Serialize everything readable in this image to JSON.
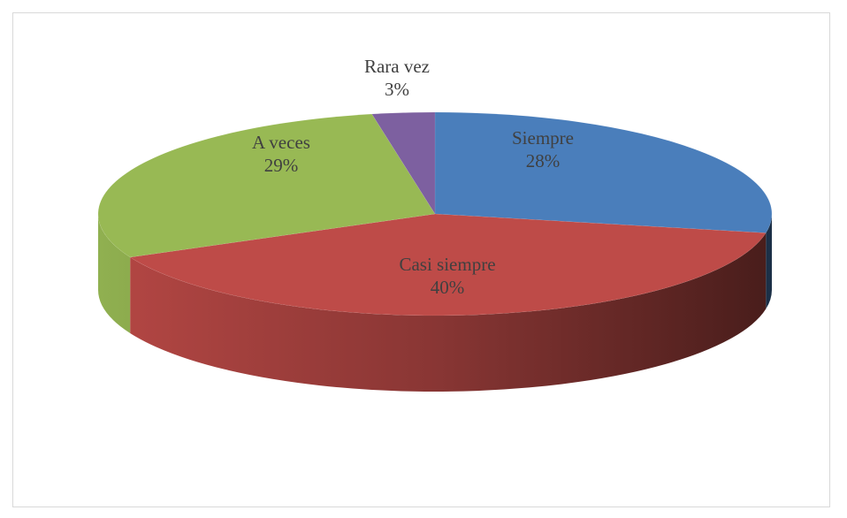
{
  "chart_data": {
    "type": "pie",
    "style": "3d",
    "title": "",
    "categories": [
      "Siempre",
      "Casi siempre",
      "A veces",
      "Rara vez"
    ],
    "values": [
      28,
      40,
      29,
      3
    ],
    "labels": [
      "28%",
      "40%",
      "29%",
      "3%"
    ],
    "colors": [
      "#4a7ebb",
      "#be4b48",
      "#98b954",
      "#7d60a0"
    ],
    "legend": "none"
  }
}
